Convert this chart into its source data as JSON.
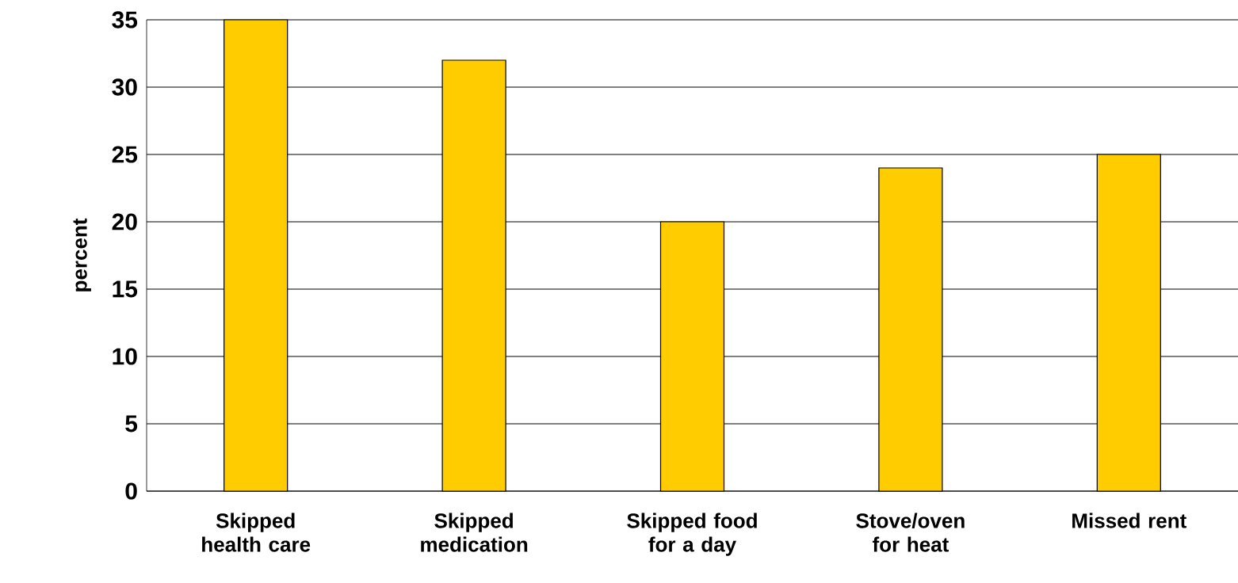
{
  "chart_data": {
    "type": "bar",
    "ylabel": "percent",
    "categories": [
      "Skipped health care",
      "Skipped medication",
      "Skipped food for a day",
      "Stove/oven for heat",
      "Missed rent"
    ],
    "values": [
      35,
      32,
      20,
      24,
      25
    ],
    "color": "#ffcc00",
    "ylim": [
      0,
      35
    ],
    "yticks": [
      0,
      5,
      10,
      15,
      20,
      25,
      30,
      35
    ],
    "grid": "y"
  }
}
